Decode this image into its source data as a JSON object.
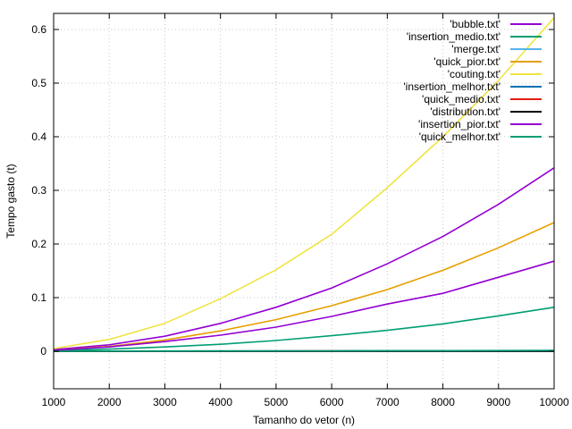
{
  "chart_data": {
    "type": "line",
    "xlabel": "Tamanho do vetor (n)",
    "ylabel": "Tempo gasto (t)",
    "xlim": [
      1000,
      10000
    ],
    "ylim": [
      -0.07,
      0.63
    ],
    "xticks": [
      1000,
      2000,
      3000,
      4000,
      5000,
      6000,
      7000,
      8000,
      9000,
      10000
    ],
    "yticks": [
      0,
      0.1,
      0.2,
      0.3,
      0.4,
      0.5,
      0.6
    ],
    "grid": true,
    "legend_position": "top-right",
    "series": [
      {
        "name": "'bubble.txt'",
        "color": "#9400d3",
        "x": [
          1000,
          2000,
          3000,
          4000,
          5000,
          6000,
          7000,
          8000,
          9000,
          10000
        ],
        "y": [
          0.003,
          0.012,
          0.028,
          0.052,
          0.082,
          0.118,
          0.163,
          0.214,
          0.274,
          0.342
        ]
      },
      {
        "name": "'insertion_medio.txt'",
        "color": "#009e73",
        "x": [
          1000,
          2000,
          3000,
          4000,
          5000,
          6000,
          7000,
          8000,
          9000,
          10000
        ],
        "y": [
          0.001,
          0.004,
          0.008,
          0.013,
          0.02,
          0.029,
          0.039,
          0.051,
          0.066,
          0.082
        ]
      },
      {
        "name": "'merge.txt'",
        "color": "#56b4e9",
        "x": [
          1000,
          2000,
          3000,
          4000,
          5000,
          6000,
          7000,
          8000,
          9000,
          10000
        ],
        "y": [
          0.0001,
          0.0002,
          0.0003,
          0.0004,
          0.0005,
          0.0006,
          0.0007,
          0.0008,
          0.0009,
          0.001
        ]
      },
      {
        "name": "'quick_pior.txt'",
        "color": "#e69f00",
        "x": [
          1000,
          2000,
          3000,
          4000,
          5000,
          6000,
          7000,
          8000,
          9000,
          10000
        ],
        "y": [
          0.002,
          0.009,
          0.021,
          0.038,
          0.059,
          0.085,
          0.115,
          0.151,
          0.193,
          0.24
        ]
      },
      {
        "name": "'couting.txt'",
        "color": "#f0e442",
        "x": [
          1000,
          2000,
          3000,
          4000,
          5000,
          6000,
          7000,
          8000,
          9000,
          10000
        ],
        "y": [
          0.005,
          0.022,
          0.052,
          0.098,
          0.152,
          0.218,
          0.305,
          0.4,
          0.505,
          0.622
        ]
      },
      {
        "name": "'insertion_melhor.txt'",
        "color": "#0072b2",
        "x": [
          1000,
          2000,
          3000,
          4000,
          5000,
          6000,
          7000,
          8000,
          9000,
          10000
        ],
        "y": [
          0,
          0,
          0,
          0,
          0,
          0,
          0,
          0,
          0,
          0
        ]
      },
      {
        "name": "'quick_medio.txt'",
        "color": "#e51e10",
        "x": [
          1000,
          2000,
          3000,
          4000,
          5000,
          6000,
          7000,
          8000,
          9000,
          10000
        ],
        "y": [
          0.0001,
          0.0002,
          0.0003,
          0.0004,
          0.0005,
          0.0006,
          0.0007,
          0.0008,
          0.0009,
          0.001
        ]
      },
      {
        "name": "'distribution.txt'",
        "color": "#000000",
        "x": [
          1000,
          2000,
          3000,
          4000,
          5000,
          6000,
          7000,
          8000,
          9000,
          10000
        ],
        "y": [
          0,
          0,
          0,
          0,
          0,
          0,
          0,
          0,
          0,
          0
        ]
      },
      {
        "name": "'insertion_pior.txt'",
        "color": "#9400d3",
        "x": [
          1000,
          2000,
          3000,
          4000,
          5000,
          6000,
          7000,
          8000,
          9000,
          10000
        ],
        "y": [
          0.002,
          0.008,
          0.018,
          0.03,
          0.045,
          0.065,
          0.088,
          0.108,
          0.138,
          0.168
        ]
      },
      {
        "name": "'quick_melhor.txt'",
        "color": "#009e73",
        "x": [
          1000,
          2000,
          3000,
          4000,
          5000,
          6000,
          7000,
          8000,
          9000,
          10000
        ],
        "y": [
          0.0002,
          0.0003,
          0.0005,
          0.0006,
          0.0008,
          0.0009,
          0.0011,
          0.0012,
          0.0014,
          0.0016
        ]
      }
    ]
  }
}
